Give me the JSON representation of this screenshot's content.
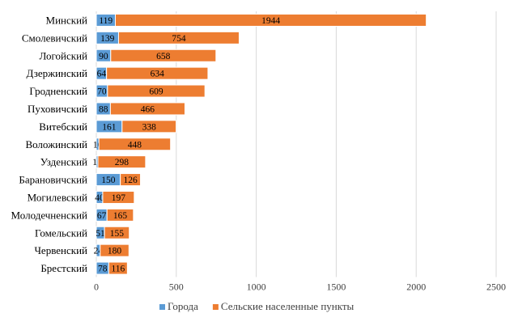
{
  "chart_data": {
    "type": "bar",
    "orientation": "horizontal",
    "stacked": true,
    "categories": [
      "Минский",
      "Смолевичский",
      "Логойский",
      "Дзержинский",
      "Гродненский",
      "Пуховичский",
      "Витебский",
      "Воложинский",
      "Узденский",
      "Барановичский",
      "Могилевский",
      "Молодечненский",
      "Гомельский",
      "Червенский",
      "Брестский"
    ],
    "series": [
      {
        "name": "Города",
        "color": "#5b9bd5",
        "values": [
          119,
          139,
          90,
          64,
          70,
          88,
          161,
          16,
          10,
          150,
          40,
          67,
          51,
          24,
          78
        ]
      },
      {
        "name": "Сельские населенные пункты",
        "color": "#ed7d31",
        "values": [
          1944,
          754,
          658,
          634,
          609,
          466,
          338,
          448,
          298,
          126,
          197,
          165,
          155,
          180,
          116
        ]
      }
    ],
    "xlim": [
      0,
      2500
    ],
    "xticks": [
      "0",
      "500",
      "1000",
      "1500",
      "2000",
      "2500"
    ],
    "grid": true,
    "legend": "bottom",
    "title": "",
    "xlabel": "",
    "ylabel": ""
  }
}
